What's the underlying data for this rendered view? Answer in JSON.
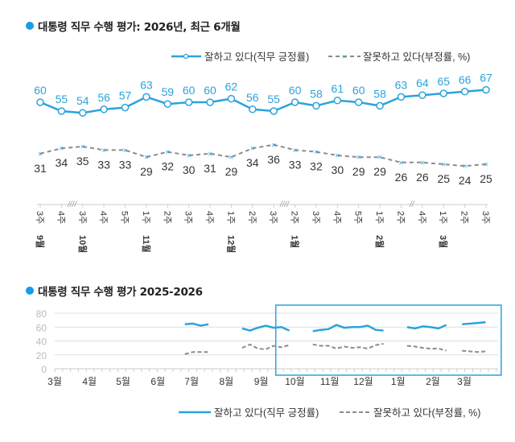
{
  "colors": {
    "positive": "#2ba3dc",
    "negative": "#8c8c8c",
    "title_dot": "#1a9be6",
    "highlight_box": "#2ba3dc"
  },
  "chart_data": [
    {
      "type": "line",
      "title": "대통령 직무 수행 평가: 2026년, 최근 6개월",
      "categories": [
        "3주",
        "4주",
        "3주",
        "4주",
        "5주",
        "1주",
        "2주",
        "3주",
        "4주",
        "1주",
        "2주",
        "3주",
        "2주",
        "3주",
        "4주",
        "5주",
        "1주",
        "2주",
        "4주",
        "1주",
        "2주",
        "3주"
      ],
      "month_labels": [
        {
          "index": 0,
          "label": "9월"
        },
        {
          "index": 2,
          "label": "10월"
        },
        {
          "index": 5,
          "label": "11월"
        },
        {
          "index": 9,
          "label": "12월"
        },
        {
          "index": 12,
          "label": "1월"
        },
        {
          "index": 16,
          "label": "2월"
        },
        {
          "index": 19,
          "label": "3월"
        }
      ],
      "axis_breaks": [
        {
          "after_index": 1,
          "mark": "////"
        },
        {
          "after_index": 11,
          "mark": "////"
        },
        {
          "after_index": 17,
          "mark": "//"
        }
      ],
      "series": [
        {
          "name": "잘하고 있다(직무 긍정률)",
          "marker": "circle",
          "style": "solid",
          "values": [
            60,
            55,
            54,
            56,
            57,
            63,
            59,
            60,
            60,
            62,
            56,
            55,
            60,
            58,
            61,
            60,
            58,
            63,
            64,
            65,
            66,
            67
          ]
        },
        {
          "name": "잘못하고 있다(부정률, %)",
          "marker": "x",
          "style": "dashed",
          "values": [
            31,
            34,
            35,
            33,
            33,
            29,
            32,
            30,
            31,
            29,
            34,
            36,
            33,
            32,
            30,
            29,
            29,
            26,
            26,
            25,
            24,
            25
          ]
        }
      ],
      "y_axis_visible": false,
      "legend_position": "top-right"
    },
    {
      "type": "line",
      "title": "대통령 직무 수행 평가 2025-2026",
      "ylim": [
        0,
        80
      ],
      "yticks": [
        0,
        20,
        40,
        60,
        80
      ],
      "grid": true,
      "x_range": [
        "2025-03-01",
        "2026-03-31"
      ],
      "month_ticks": [
        {
          "date": "2025-03-01",
          "label": "3월"
        },
        {
          "date": "2025-04-01",
          "label": "4월"
        },
        {
          "date": "2025-05-01",
          "label": "5월"
        },
        {
          "date": "2025-06-01",
          "label": "6월"
        },
        {
          "date": "2025-07-01",
          "label": "7월"
        },
        {
          "date": "2025-08-01",
          "label": "8월"
        },
        {
          "date": "2025-09-01",
          "label": "9월"
        },
        {
          "date": "2025-10-01",
          "label": "10월"
        },
        {
          "date": "2025-11-01",
          "label": "11월"
        },
        {
          "date": "2025-12-01",
          "label": "12월"
        },
        {
          "date": "2026-01-01",
          "label": "1월"
        },
        {
          "date": "2026-02-01",
          "label": "2월"
        },
        {
          "date": "2026-03-01",
          "label": "3월"
        }
      ],
      "highlight_range": [
        "2025-09-14",
        "2026-03-31"
      ],
      "series": [
        {
          "name": "잘하고 있다(직무 긍정률)",
          "style": "solid",
          "segments": [
            [
              [
                "2025-06-25",
                64
              ],
              [
                "2025-07-02",
                65
              ],
              [
                "2025-07-09",
                62
              ],
              [
                "2025-07-16",
                64
              ]
            ],
            [
              [
                "2025-08-15",
                58
              ],
              [
                "2025-08-22",
                55
              ],
              [
                "2025-08-29",
                59
              ],
              [
                "2025-09-05",
                62
              ],
              [
                "2025-09-12",
                59
              ],
              [
                "2025-09-19",
                60
              ],
              [
                "2025-09-26",
                55
              ]
            ],
            [
              [
                "2025-10-17",
                54
              ],
              [
                "2025-10-24",
                56
              ],
              [
                "2025-10-31",
                57
              ],
              [
                "2025-11-07",
                63
              ],
              [
                "2025-11-14",
                59
              ],
              [
                "2025-11-21",
                60
              ],
              [
                "2025-11-28",
                60
              ],
              [
                "2025-12-05",
                62
              ],
              [
                "2025-12-12",
                56
              ],
              [
                "2025-12-19",
                55
              ]
            ],
            [
              [
                "2026-01-09",
                60
              ],
              [
                "2026-01-16",
                58
              ],
              [
                "2026-01-23",
                61
              ],
              [
                "2026-01-30",
                60
              ],
              [
                "2026-02-06",
                58
              ],
              [
                "2026-02-13",
                63
              ]
            ],
            [
              [
                "2026-02-27",
                64
              ],
              [
                "2026-03-06",
                65
              ],
              [
                "2026-03-13",
                66
              ],
              [
                "2026-03-20",
                67
              ]
            ]
          ]
        },
        {
          "name": "잘못하고 있다(부정률, %)",
          "style": "dashed",
          "segments": [
            [
              [
                "2025-06-25",
                21
              ],
              [
                "2025-07-02",
                24
              ],
              [
                "2025-07-09",
                24
              ],
              [
                "2025-07-16",
                24
              ]
            ],
            [
              [
                "2025-08-15",
                30
              ],
              [
                "2025-08-22",
                35
              ],
              [
                "2025-08-29",
                29
              ],
              [
                "2025-09-05",
                28
              ],
              [
                "2025-09-12",
                33
              ],
              [
                "2025-09-19",
                31
              ],
              [
                "2025-09-26",
                34
              ]
            ],
            [
              [
                "2025-10-17",
                35
              ],
              [
                "2025-10-24",
                33
              ],
              [
                "2025-10-31",
                33
              ],
              [
                "2025-11-07",
                29
              ],
              [
                "2025-11-14",
                32
              ],
              [
                "2025-11-21",
                30
              ],
              [
                "2025-11-28",
                31
              ],
              [
                "2025-12-05",
                29
              ],
              [
                "2025-12-12",
                34
              ],
              [
                "2025-12-19",
                36
              ]
            ],
            [
              [
                "2026-01-09",
                33
              ],
              [
                "2026-01-16",
                32
              ],
              [
                "2026-01-23",
                30
              ],
              [
                "2026-01-30",
                29
              ],
              [
                "2026-02-06",
                29
              ],
              [
                "2026-02-13",
                26
              ]
            ],
            [
              [
                "2026-02-27",
                26
              ],
              [
                "2026-03-06",
                25
              ],
              [
                "2026-03-13",
                24
              ],
              [
                "2026-03-20",
                25
              ]
            ]
          ]
        }
      ],
      "legend_position": "bottom-right"
    }
  ]
}
